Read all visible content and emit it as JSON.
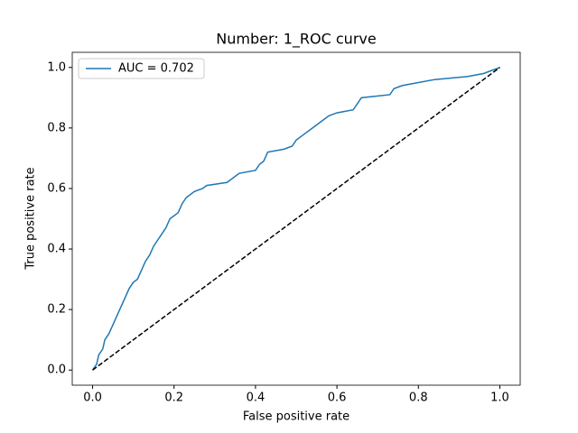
{
  "chart_data": {
    "type": "line",
    "title": "Number: 1_ROC curve",
    "x_label": "False positive rate",
    "y_label": "True positive rate",
    "xlim": [
      -0.05,
      1.05
    ],
    "ylim": [
      -0.05,
      1.05
    ],
    "xticks": [
      {
        "value": 0,
        "label": "0.0"
      },
      0.2,
      0.4,
      0.6,
      0.8,
      {
        "value": 1,
        "label": "1.0"
      }
    ],
    "yticks": [
      {
        "value": 0,
        "label": "0.0"
      },
      0.2,
      0.4,
      0.6,
      0.8,
      {
        "value": 1,
        "label": "1.0"
      }
    ],
    "legend": "upper left",
    "series": [
      {
        "name": "AUC = 0.702",
        "color": "#1f77b4",
        "style": "solid",
        "x": [
          0,
          0.005,
          0.01,
          0.015,
          0.025,
          0.03,
          0.04,
          0.05,
          0.06,
          0.07,
          0.08,
          0.09,
          0.1,
          0.11,
          0.12,
          0.13,
          0.14,
          0.15,
          0.16,
          0.17,
          0.18,
          0.19,
          0.21,
          0.22,
          0.23,
          0.25,
          0.27,
          0.28,
          0.33,
          0.35,
          0.36,
          0.4,
          0.41,
          0.42,
          0.43,
          0.47,
          0.49,
          0.5,
          0.52,
          0.54,
          0.56,
          0.58,
          0.6,
          0.64,
          0.65,
          0.66,
          0.73,
          0.74,
          0.76,
          0.8,
          0.84,
          0.92,
          0.96,
          0.98,
          1.0
        ],
        "values": [
          0,
          0.01,
          0.02,
          0.05,
          0.07,
          0.1,
          0.12,
          0.15,
          0.18,
          0.21,
          0.24,
          0.27,
          0.29,
          0.3,
          0.33,
          0.36,
          0.38,
          0.41,
          0.43,
          0.45,
          0.47,
          0.5,
          0.52,
          0.55,
          0.57,
          0.59,
          0.6,
          0.61,
          0.62,
          0.64,
          0.65,
          0.66,
          0.68,
          0.69,
          0.72,
          0.73,
          0.74,
          0.76,
          0.78,
          0.8,
          0.82,
          0.84,
          0.85,
          0.86,
          0.88,
          0.9,
          0.91,
          0.93,
          0.94,
          0.95,
          0.96,
          0.97,
          0.98,
          0.99,
          1.0
        ]
      },
      {
        "color": "#000000",
        "style": "dashed",
        "x": [
          0,
          1
        ],
        "values": [
          0,
          1
        ]
      }
    ]
  }
}
